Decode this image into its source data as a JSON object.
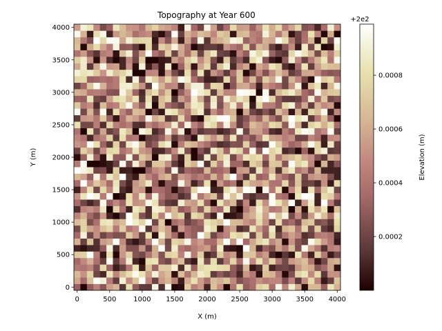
{
  "chart_data": {
    "type": "heatmap",
    "title": "Topography at Year 600",
    "xlabel": "X (m)",
    "ylabel": "Y (m)",
    "xlim": [
      -50,
      4050
    ],
    "ylim": [
      -50,
      4050
    ],
    "x_ticks": [
      0,
      500,
      1000,
      1500,
      2000,
      2500,
      3000,
      3500,
      4000
    ],
    "y_ticks": [
      0,
      500,
      1000,
      1500,
      2000,
      2500,
      3000,
      3500,
      4000
    ],
    "grid": false,
    "grid_shape": [
      41,
      41
    ],
    "cell_size_m": 100,
    "colormap": "pink",
    "colorbar": {
      "label": "Elevation (m)",
      "offset_text": "+2e2",
      "vmin": 0.0,
      "vmax": 0.00099,
      "ticks": [
        0.0002,
        0.0004,
        0.0006,
        0.0008
      ],
      "tick_labels": [
        "0.0002",
        "0.0004",
        "0.0006",
        "0.0008"
      ]
    },
    "value_distribution": "random uniform noise between vmin and vmax"
  }
}
